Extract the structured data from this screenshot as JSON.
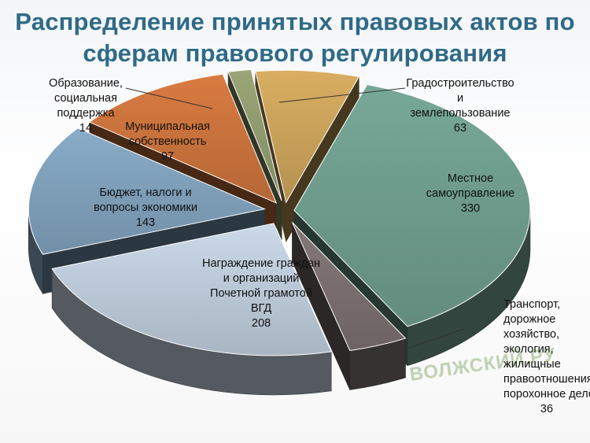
{
  "title": {
    "line1": "Распределение принятых правовых актов по",
    "line2": "сферам правового регулирования"
  },
  "watermark": "ВОЛЖСКИЙ.РУ",
  "chart_data": {
    "type": "pie",
    "slices": [
      {
        "label_lines": [
          "Местное",
          "самоуправление"
        ],
        "value": 330,
        "value_text": "330",
        "color": "#6e9c8c"
      },
      {
        "label_lines": [
          "Транспорт,",
          "дорожное",
          "хозяйство,",
          "экология,",
          "жилищные",
          "правоотношения,",
          "порохонное дело"
        ],
        "value": 36,
        "value_text": "36",
        "color": "#7a6e6e"
      },
      {
        "label_lines": [
          "Награждение граждан",
          "и организаций",
          "Почетной грамотой",
          "ВГД"
        ],
        "value": 208,
        "value_text": "208",
        "color": "#bcc9d8"
      },
      {
        "label_lines": [
          "Бюджет, налоги и",
          "вопросы экономики"
        ],
        "value": 143,
        "value_text": "143",
        "color": "#7f9fb9"
      },
      {
        "label_lines": [
          "Муниципальная",
          "собственность"
        ],
        "value": 97,
        "value_text": "97",
        "color": "#c9723c"
      },
      {
        "label_lines": [
          "Образование,",
          "социальная",
          "поддержка"
        ],
        "value": 14,
        "value_text": "14",
        "color": "#8f9a6e"
      },
      {
        "label_lines": [
          "Градостроительство",
          "и",
          "землепользование"
        ],
        "value": 63,
        "value_text": "63",
        "color": "#c9a15a"
      }
    ]
  }
}
